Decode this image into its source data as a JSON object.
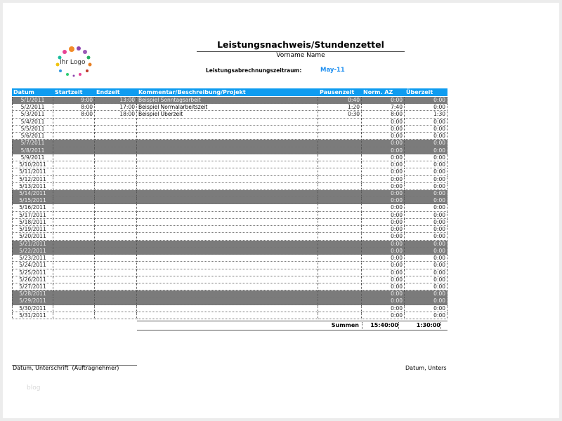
{
  "logo": {
    "text": "Ihr Logo"
  },
  "header": {
    "title": "Leistungsnachweis/Stundenzettel",
    "subtitle": "Vorname Name",
    "period_label": "Leistungsabrechnungszeitraum:",
    "period_value": "May-11"
  },
  "table": {
    "columns": [
      "Datum",
      "Startzeit",
      "Endzeit",
      "Kommentar/Beschreibung/Projekt",
      "Pausenzeit",
      "Norm. AZ",
      "Überzeit"
    ],
    "shaded_rows": [
      0,
      6,
      7,
      13,
      14,
      20,
      21,
      27,
      28
    ],
    "rows": [
      {
        "date": "5/1/2011",
        "start": "9:00",
        "end": "13:00",
        "comment": "Beispiel Sonntagsarbeit",
        "pause": "0:40",
        "norm": "0:00",
        "over": "0:00"
      },
      {
        "date": "5/2/2011",
        "start": "8:00",
        "end": "17:00",
        "comment": "Beispiel Normalarbeitszeit",
        "pause": "1:20",
        "norm": "7:40",
        "over": "0:00"
      },
      {
        "date": "5/3/2011",
        "start": "8:00",
        "end": "18:00",
        "comment": "Beispiel Überzeit",
        "pause": "0:30",
        "norm": "8:00",
        "over": "1:30"
      },
      {
        "date": "5/4/2011",
        "norm": "0:00",
        "over": "0:00"
      },
      {
        "date": "5/5/2011",
        "norm": "0:00",
        "over": "0:00"
      },
      {
        "date": "5/6/2011",
        "norm": "0:00",
        "over": "0:00"
      },
      {
        "date": "5/7/2011",
        "norm": "0:00",
        "over": "0:00"
      },
      {
        "date": "5/8/2011",
        "norm": "0:00",
        "over": "0:00"
      },
      {
        "date": "5/9/2011",
        "norm": "0:00",
        "over": "0:00"
      },
      {
        "date": "5/10/2011",
        "norm": "0:00",
        "over": "0:00"
      },
      {
        "date": "5/11/2011",
        "norm": "0:00",
        "over": "0:00"
      },
      {
        "date": "5/12/2011",
        "norm": "0:00",
        "over": "0:00"
      },
      {
        "date": "5/13/2011",
        "norm": "0:00",
        "over": "0:00"
      },
      {
        "date": "5/14/2011",
        "norm": "0:00",
        "over": "0:00"
      },
      {
        "date": "5/15/2011",
        "norm": "0:00",
        "over": "0:00"
      },
      {
        "date": "5/16/2011",
        "norm": "0:00",
        "over": "0:00"
      },
      {
        "date": "5/17/2011",
        "norm": "0:00",
        "over": "0:00"
      },
      {
        "date": "5/18/2011",
        "norm": "0:00",
        "over": "0:00"
      },
      {
        "date": "5/19/2011",
        "norm": "0:00",
        "over": "0:00"
      },
      {
        "date": "5/20/2011",
        "norm": "0:00",
        "over": "0:00"
      },
      {
        "date": "5/21/2011",
        "norm": "0:00",
        "over": "0:00"
      },
      {
        "date": "5/22/2011",
        "norm": "0:00",
        "over": "0:00"
      },
      {
        "date": "5/23/2011",
        "norm": "0:00",
        "over": "0:00"
      },
      {
        "date": "5/24/2011",
        "norm": "0:00",
        "over": "0:00"
      },
      {
        "date": "5/25/2011",
        "norm": "0:00",
        "over": "0:00"
      },
      {
        "date": "5/26/2011",
        "norm": "0:00",
        "over": "0:00"
      },
      {
        "date": "5/27/2011",
        "norm": "0:00",
        "over": "0:00"
      },
      {
        "date": "5/28/2011",
        "norm": "0:00",
        "over": "0:00"
      },
      {
        "date": "5/29/2011",
        "norm": "0:00",
        "over": "0:00"
      },
      {
        "date": "5/30/2011",
        "norm": "0:00",
        "over": "0:00"
      },
      {
        "date": "5/31/2011",
        "norm": "0:00",
        "over": "0:00"
      }
    ],
    "totals": {
      "label": "Summen",
      "norm": "15:40:00",
      "over": "1:30:00"
    }
  },
  "footer": {
    "signature_left": "Datum, Unterschrift  (Auftragnehmer)",
    "signature_right": "Datum, Unters",
    "watermark": "blog"
  }
}
